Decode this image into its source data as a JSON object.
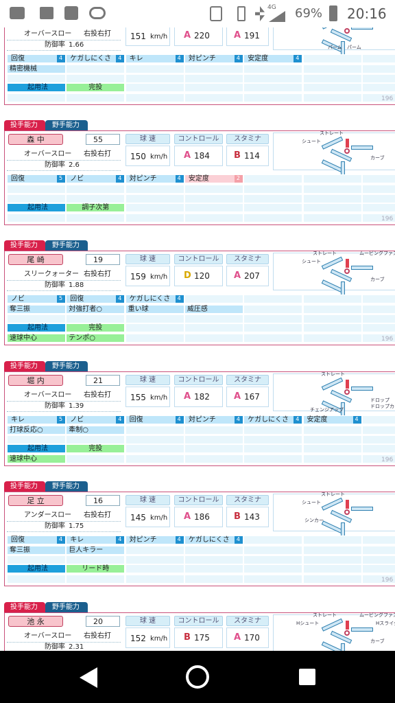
{
  "status_bar": {
    "network": "4G",
    "battery": "69%",
    "time": "20:16"
  },
  "labels": {
    "tab_pitcher": "投手能力",
    "tab_fielder": "野手能力",
    "speed": "球 速",
    "control": "コントロール",
    "stamina": "スタミナ",
    "era": "防御率",
    "speed_unit": "km/h",
    "usage": "起用法",
    "year": "196"
  },
  "cards": [
    {
      "form": "オーバースロー",
      "hand": "右投右打",
      "era": 1.66,
      "speed": 151,
      "control": {
        "rank": "A",
        "value": 220
      },
      "stamina": {
        "rank": "A",
        "value": 191
      },
      "abilities": [
        {
          "name": "回復",
          "level": 4
        },
        {
          "name": "ケガしにくさ",
          "level": 4
        },
        {
          "name": "キレ",
          "level": 4
        },
        {
          "name": "対ピンチ",
          "level": 4
        },
        {
          "name": "安定度",
          "level": 4
        }
      ],
      "specials": [
        "精密機械"
      ],
      "usage": [
        [
          "完投"
        ],
        []
      ],
      "pitches": [
        "パーム",
        "パーム"
      ]
    },
    {
      "name": "森 中",
      "number": 55,
      "form": "オーバースロー",
      "hand": "右投右打",
      "era": 2.6,
      "speed": 150,
      "control": {
        "rank": "A",
        "value": 184
      },
      "stamina": {
        "rank": "B",
        "value": 114
      },
      "abilities": [
        {
          "name": "回復",
          "level": 5
        },
        {
          "name": "ノビ",
          "level": 4
        },
        {
          "name": "対ピンチ",
          "level": 4
        },
        {
          "name": "安定度",
          "level": 2
        }
      ],
      "specials": [],
      "usage": [
        [
          "調子次第"
        ],
        []
      ],
      "pitches": [
        "ストレート",
        "シュート",
        "カーブ"
      ]
    },
    {
      "name": "尾 崎",
      "number": 19,
      "form": "スリークォーター",
      "hand": "右投右打",
      "era": 1.88,
      "speed": 159,
      "control": {
        "rank": "D",
        "value": 120
      },
      "stamina": {
        "rank": "A",
        "value": 207
      },
      "abilities": [
        {
          "name": "ノビ",
          "level": 5
        },
        {
          "name": "回復",
          "level": 4
        },
        {
          "name": "ケガしにくさ",
          "level": 4
        }
      ],
      "specials": [
        "奪三振",
        "対強打者○",
        "重い球",
        "威圧感"
      ],
      "usage": [
        [
          "完投"
        ],
        [
          "速球中心",
          "テンポ○"
        ]
      ],
      "pitches": [
        "ストレート",
        "ムービングファスト",
        "シュート",
        "カーブ"
      ]
    },
    {
      "name": "堀 内",
      "number": 21,
      "form": "オーバースロー",
      "hand": "右投右打",
      "era": 1.39,
      "speed": 155,
      "control": {
        "rank": "A",
        "value": 182
      },
      "stamina": {
        "rank": "A",
        "value": 167
      },
      "abilities": [
        {
          "name": "キレ",
          "level": 5
        },
        {
          "name": "ノビ",
          "level": 4
        },
        {
          "name": "回復",
          "level": 4
        },
        {
          "name": "対ピンチ",
          "level": 4
        },
        {
          "name": "ケガしにくさ",
          "level": 4
        },
        {
          "name": "安定度",
          "level": 4
        }
      ],
      "specials": [
        "打球反応○",
        "牽制○"
      ],
      "usage": [
        [
          "完投"
        ],
        [
          "速球中心"
        ]
      ],
      "pitches": [
        "ストレート",
        "ドロップ",
        "ドロップカーブ",
        "チェンジアップ"
      ]
    },
    {
      "name": "足 立",
      "number": 16,
      "form": "アンダースロー",
      "hand": "右投右打",
      "era": 1.75,
      "speed": 145,
      "control": {
        "rank": "A",
        "value": 186
      },
      "stamina": {
        "rank": "B",
        "value": 143
      },
      "abilities": [
        {
          "name": "回復",
          "level": 4
        },
        {
          "name": "キレ",
          "level": 4
        },
        {
          "name": "対ピンチ",
          "level": 4
        },
        {
          "name": "ケガしにくさ",
          "level": 4
        }
      ],
      "specials": [
        "奪三振",
        "巨人キラー"
      ],
      "usage": [
        [
          "リード時"
        ],
        []
      ],
      "pitches": [
        "ストレート",
        "シュート",
        "シンカー"
      ]
    },
    {
      "name": "池 永",
      "number": 20,
      "form": "オーバースロー",
      "hand": "右投右打",
      "era": 2.31,
      "speed": 152,
      "control": {
        "rank": "B",
        "value": 175
      },
      "stamina": {
        "rank": "A",
        "value": 170
      },
      "abilities": [],
      "specials": [],
      "usage": [
        [],
        []
      ],
      "pitches": [
        "ストレート",
        "ムービングファスト",
        "Hシュート",
        "Hスライダー",
        "カーブ"
      ]
    }
  ]
}
